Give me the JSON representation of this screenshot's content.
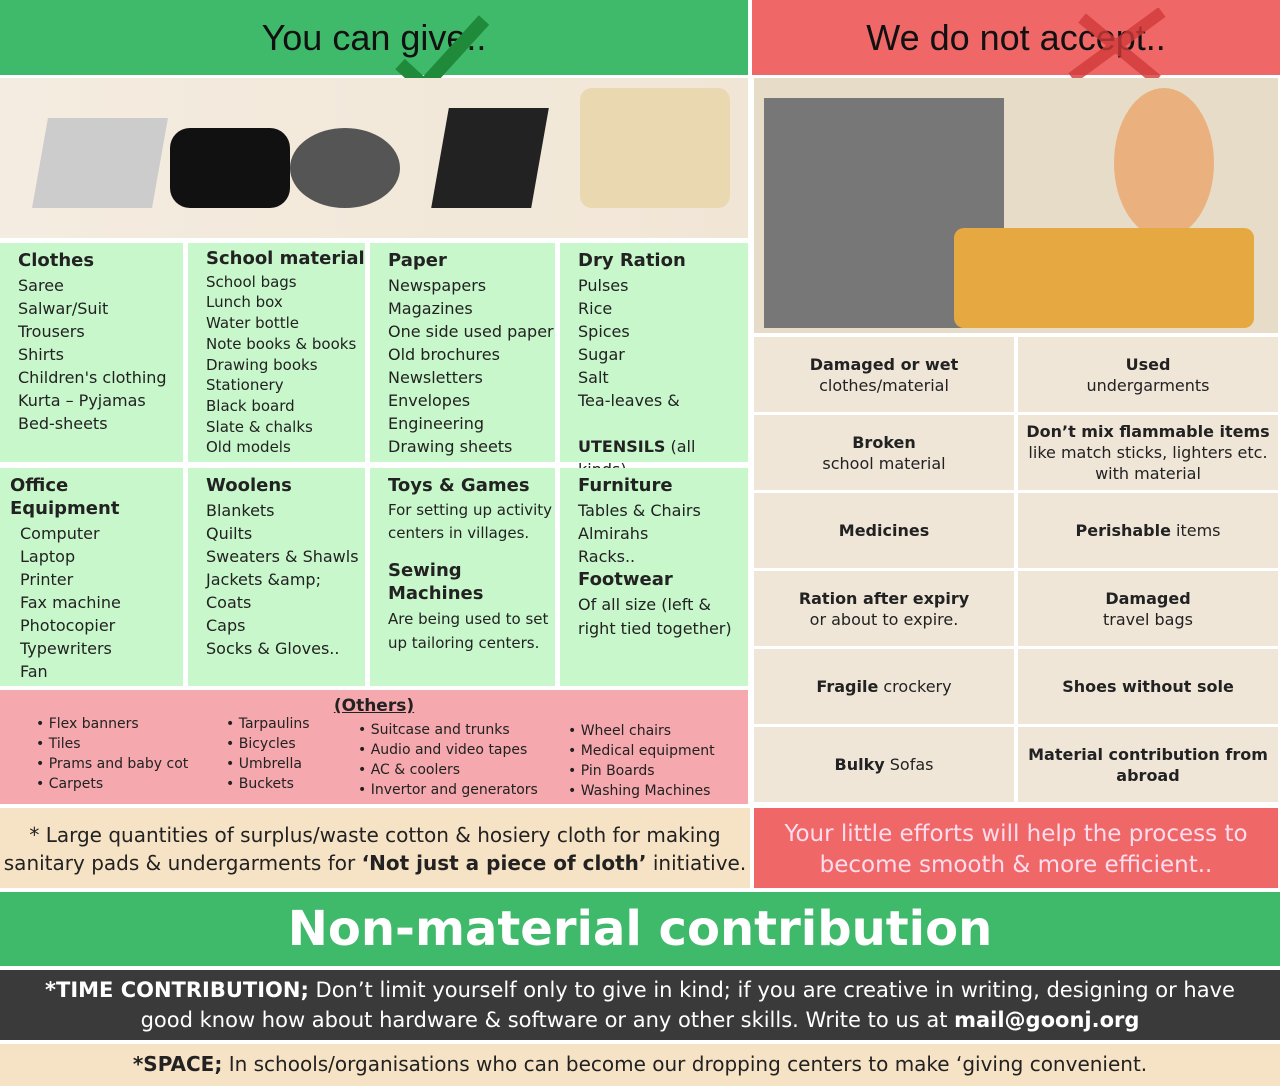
{
  "left_header": "You can give..",
  "right_header": "We do not accept..",
  "give": [
    {
      "title": "Clothes",
      "items": [
        "Saree",
        "Salwar/Suit",
        "Trousers",
        "Shirts",
        "Children's clothing",
        "Kurta – Pyjamas",
        "Bed-sheets"
      ]
    },
    {
      "title": "School material",
      "items": [
        "School bags",
        "Lunch box",
        "Water bottle",
        "Note books & books",
        "Drawing books",
        "Stationery",
        "Black board",
        "Slate & chalks",
        "Old models"
      ]
    },
    {
      "title": "Paper",
      "items": [
        "Newspapers",
        "Magazines",
        "One side used paper",
        "Old brochures",
        "Newsletters",
        "Envelopes",
        "Engineering",
        "Drawing sheets"
      ]
    },
    {
      "title": "Dry Ration",
      "items": [
        "Pulses",
        "Rice",
        "Spices",
        "Sugar",
        "Salt",
        "Tea-leaves &"
      ],
      "extra_bold": "UTENSILS",
      "extra": " (all kinds)"
    },
    {
      "title": "Office Equipment",
      "items": [
        "Computer",
        "Laptop",
        "Printer",
        "Fax machine",
        "Photocopier",
        "Typewriters",
        "Fan"
      ]
    },
    {
      "title": "Woolens",
      "items": [
        "Blankets",
        "Quilts",
        "Sweaters & Shawls",
        "Jackets &amp; Coats",
        "Caps",
        "Socks & Gloves.."
      ]
    },
    {
      "title": "Toys & Games",
      "items": [
        "For setting up activity",
        "centers in villages."
      ],
      "title2": "Sewing Machines",
      "items2": [
        "Are being used to set",
        "up tailoring centers."
      ]
    },
    {
      "title": "Furniture",
      "items": [
        "Tables & Chairs",
        "Almirahs",
        "Racks.."
      ],
      "title2": "Footwear",
      "items2": [
        "Of all size (left &",
        "right tied together)"
      ]
    }
  ],
  "others": {
    "title": "(Others)",
    "cols": [
      [
        "Flex banners",
        "Tiles",
        "Prams and baby cot",
        "Carpets"
      ],
      [
        "Tarpaulins",
        "Bicycles",
        "Umbrella",
        "Buckets"
      ],
      [
        "Suitcase and trunks",
        "Audio and video tapes",
        "AC & coolers",
        "Invertor and generators"
      ],
      [
        "Wheel chairs",
        "Medical equipment",
        "Pin Boards",
        "Washing Machines"
      ]
    ]
  },
  "note": {
    "l1": "* Large quantities of surplus/waste cotton & hosiery cloth for making",
    "l2a": "sanitary pads & undergarments for ",
    "l2b": "‘Not just a piece of cloth’",
    "l2c": "  initiative."
  },
  "reject": [
    {
      "b": "Damaged or wet",
      "t": "clothes/material"
    },
    {
      "b": "Used",
      "t": "undergarments"
    },
    {
      "b": "Broken",
      "t": "school material"
    },
    {
      "b": "Don’t mix flammable items",
      "t": " like match sticks, lighters etc. with material"
    },
    {
      "b": "Medicines",
      "t": ""
    },
    {
      "b": "Perishable",
      "t": " items"
    },
    {
      "b": "Ration after expiry",
      "t": "or about to expire."
    },
    {
      "b": "Damaged",
      "t": "travel bags"
    },
    {
      "b": "Fragile",
      "t": " crockery"
    },
    {
      "b": "Shoes without sole",
      "t": ""
    },
    {
      "b": "Bulky",
      "t": " Sofas"
    },
    {
      "b": "Material contribution from abroad",
      "t": ""
    }
  ],
  "efforts": "Your little efforts will help the process to become smooth & more efficient..",
  "banner": "Non-material contribution",
  "time": {
    "b": "*TIME CONTRIBUTION;",
    "t": " Don’t limit yourself only to give in kind; if you are creative in writing, designing or have good know how about hardware & software or any other skills. Write to us at ",
    "email": "mail@goonj.org"
  },
  "space": {
    "b": "*SPACE;",
    "t": " In schools/organisations who can become our dropping centers to make ‘giving convenient."
  },
  "colors": {
    "green": "#3fb96a",
    "red": "#f06767",
    "mint": "#c8f7cb",
    "pink": "#f5a8ad",
    "beige": "#f6e2c4",
    "dark": "#3a3a3a"
  }
}
